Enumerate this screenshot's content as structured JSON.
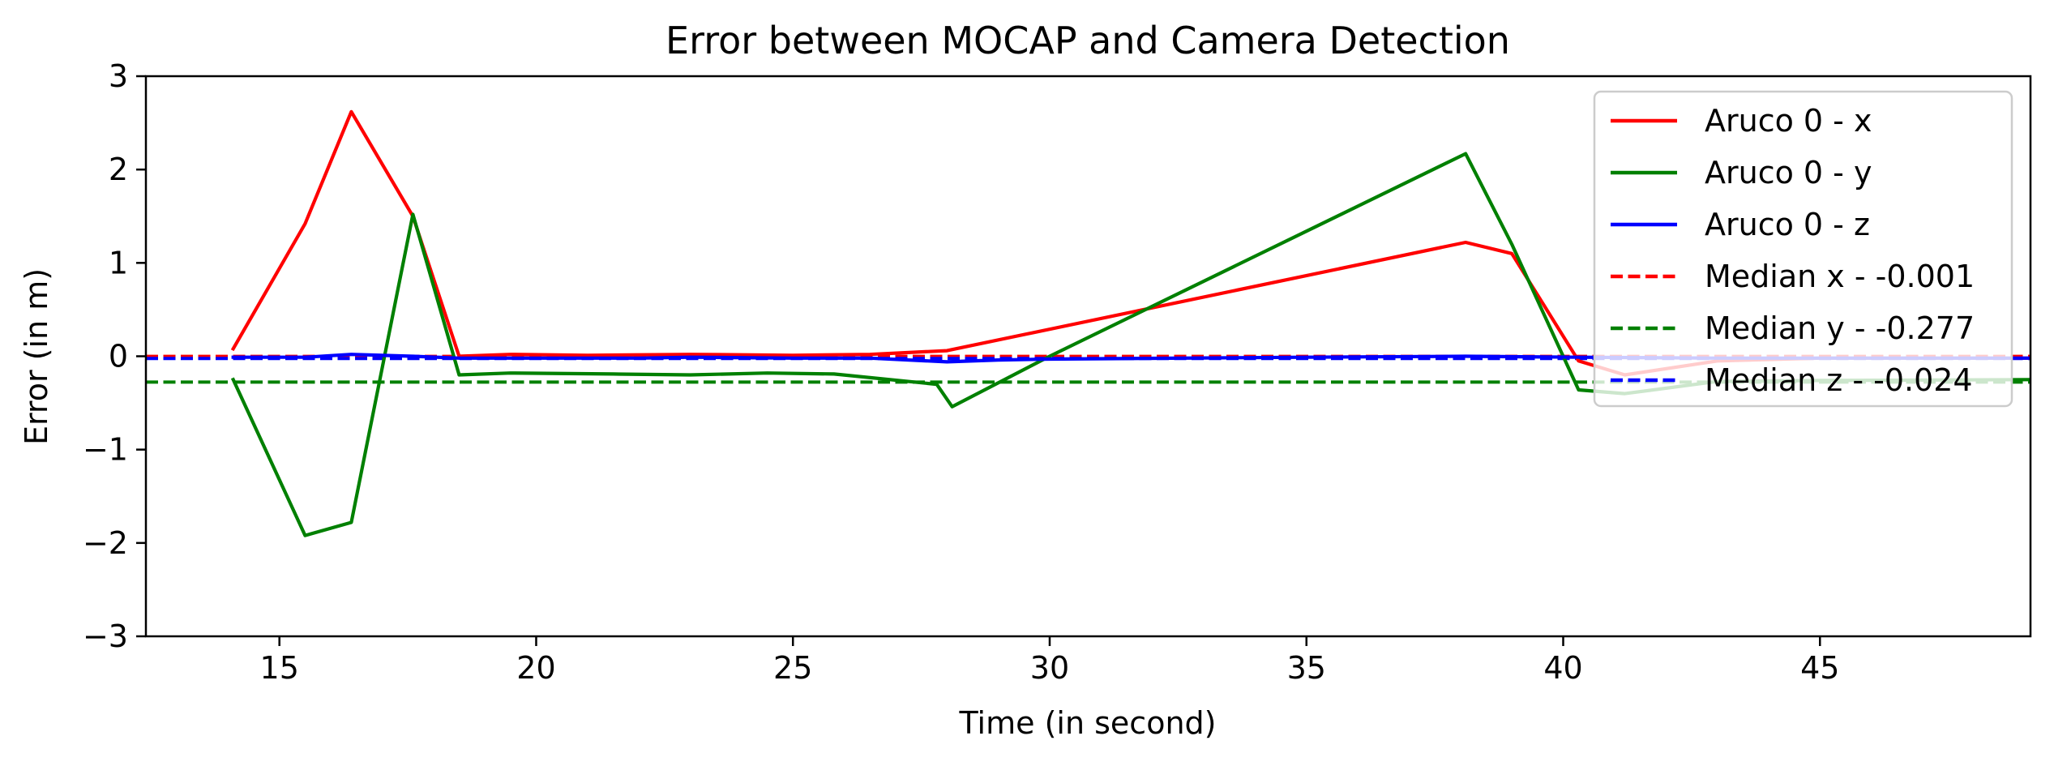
{
  "chart_data": {
    "type": "line",
    "title": "Error between MOCAP and Camera Detection",
    "xlabel": "Time (in second)",
    "ylabel": "Error (in m)",
    "xlim": [
      12.4,
      49.1
    ],
    "ylim": [
      -3,
      3
    ],
    "xticks": [
      15,
      20,
      25,
      30,
      35,
      40,
      45
    ],
    "yticks": [
      3,
      2,
      1,
      0,
      -1,
      -2,
      -3
    ],
    "xtick_labels": [
      "15",
      "20",
      "25",
      "30",
      "35",
      "40",
      "45"
    ],
    "ytick_labels": [
      "3",
      "2",
      "1",
      "0",
      "−1",
      "−2",
      "−3"
    ],
    "grid": false,
    "legend_position": "top-right",
    "series": [
      {
        "name": "Aruco 0 - x",
        "color": "#ff0000",
        "style": "solid",
        "points": [
          [
            14.1,
            0.08
          ],
          [
            15.5,
            1.42
          ],
          [
            16.4,
            2.62
          ],
          [
            17.6,
            1.5
          ],
          [
            18.5,
            0.0
          ],
          [
            19.5,
            0.02
          ],
          [
            21.0,
            0.01
          ],
          [
            23.0,
            0.02
          ],
          [
            25.0,
            0.01
          ],
          [
            26.5,
            0.02
          ],
          [
            28.0,
            0.06
          ],
          [
            38.1,
            1.22
          ],
          [
            39.0,
            1.1
          ],
          [
            40.3,
            -0.05
          ],
          [
            41.2,
            -0.2
          ],
          [
            43.0,
            -0.05
          ],
          [
            45.0,
            -0.02
          ],
          [
            49.1,
            -0.02
          ]
        ]
      },
      {
        "name": "Aruco 0 - y",
        "color": "#008000",
        "style": "solid",
        "points": [
          [
            14.1,
            -0.25
          ],
          [
            15.5,
            -1.92
          ],
          [
            16.4,
            -1.78
          ],
          [
            17.6,
            1.52
          ],
          [
            18.5,
            -0.2
          ],
          [
            19.5,
            -0.18
          ],
          [
            21.5,
            -0.19
          ],
          [
            23.0,
            -0.2
          ],
          [
            24.5,
            -0.18
          ],
          [
            25.8,
            -0.19
          ],
          [
            27.8,
            -0.3
          ],
          [
            28.1,
            -0.54
          ],
          [
            30.0,
            0.0
          ],
          [
            38.1,
            2.17
          ],
          [
            39.0,
            1.2
          ],
          [
            40.3,
            -0.36
          ],
          [
            41.2,
            -0.4
          ],
          [
            43.0,
            -0.27
          ],
          [
            45.0,
            -0.26
          ],
          [
            49.1,
            -0.25
          ]
        ]
      },
      {
        "name": "Aruco 0 - z",
        "color": "#0000ff",
        "style": "solid",
        "points": [
          [
            14.1,
            -0.01
          ],
          [
            15.5,
            -0.01
          ],
          [
            16.4,
            0.02
          ],
          [
            17.6,
            0.0
          ],
          [
            18.5,
            -0.02
          ],
          [
            20.0,
            -0.02
          ],
          [
            22.0,
            -0.02
          ],
          [
            23.0,
            -0.01
          ],
          [
            25.0,
            -0.02
          ],
          [
            26.5,
            -0.02
          ],
          [
            28.0,
            -0.06
          ],
          [
            29.0,
            -0.04
          ],
          [
            30.0,
            -0.03
          ],
          [
            35.0,
            -0.01
          ],
          [
            38.1,
            0.0
          ],
          [
            40.3,
            -0.01
          ],
          [
            43.0,
            -0.02
          ],
          [
            49.1,
            -0.02
          ]
        ]
      }
    ],
    "medians": [
      {
        "name": "Median x - -0.001",
        "value": -0.001,
        "color": "#ff0000",
        "style": "dashed"
      },
      {
        "name": "Median y - -0.277",
        "value": -0.277,
        "color": "#008000",
        "style": "dashed"
      },
      {
        "name": "Median z - -0.024",
        "value": -0.024,
        "color": "#0000ff",
        "style": "dashed"
      }
    ]
  }
}
